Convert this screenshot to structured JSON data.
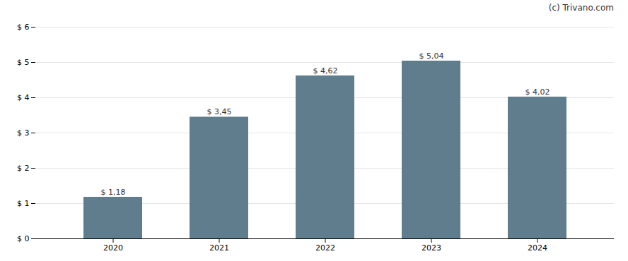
{
  "chart_data": {
    "type": "bar",
    "categories": [
      "2020",
      "2021",
      "2022",
      "2023",
      "2024"
    ],
    "values": [
      1.18,
      3.45,
      4.62,
      5.04,
      4.02
    ],
    "value_labels": [
      "$ 1,18",
      "$ 3,45",
      "$ 4,62",
      "$ 5,04",
      "$ 4,02"
    ],
    "data_labels": true,
    "color": "#5f7d8c",
    "ylim": [
      0,
      6
    ],
    "yticks": [
      {
        "value": 0,
        "label": "$ 0"
      },
      {
        "value": 1,
        "label": "$ 1"
      },
      {
        "value": 2,
        "label": "$ 2"
      },
      {
        "value": 3,
        "label": "$ 3"
      },
      {
        "value": 4,
        "label": "$ 4"
      },
      {
        "value": 5,
        "label": "$ 5"
      },
      {
        "value": 6,
        "label": "$ 6"
      }
    ],
    "grid": true,
    "annotations": [
      "(c) Trivano.com"
    ]
  }
}
